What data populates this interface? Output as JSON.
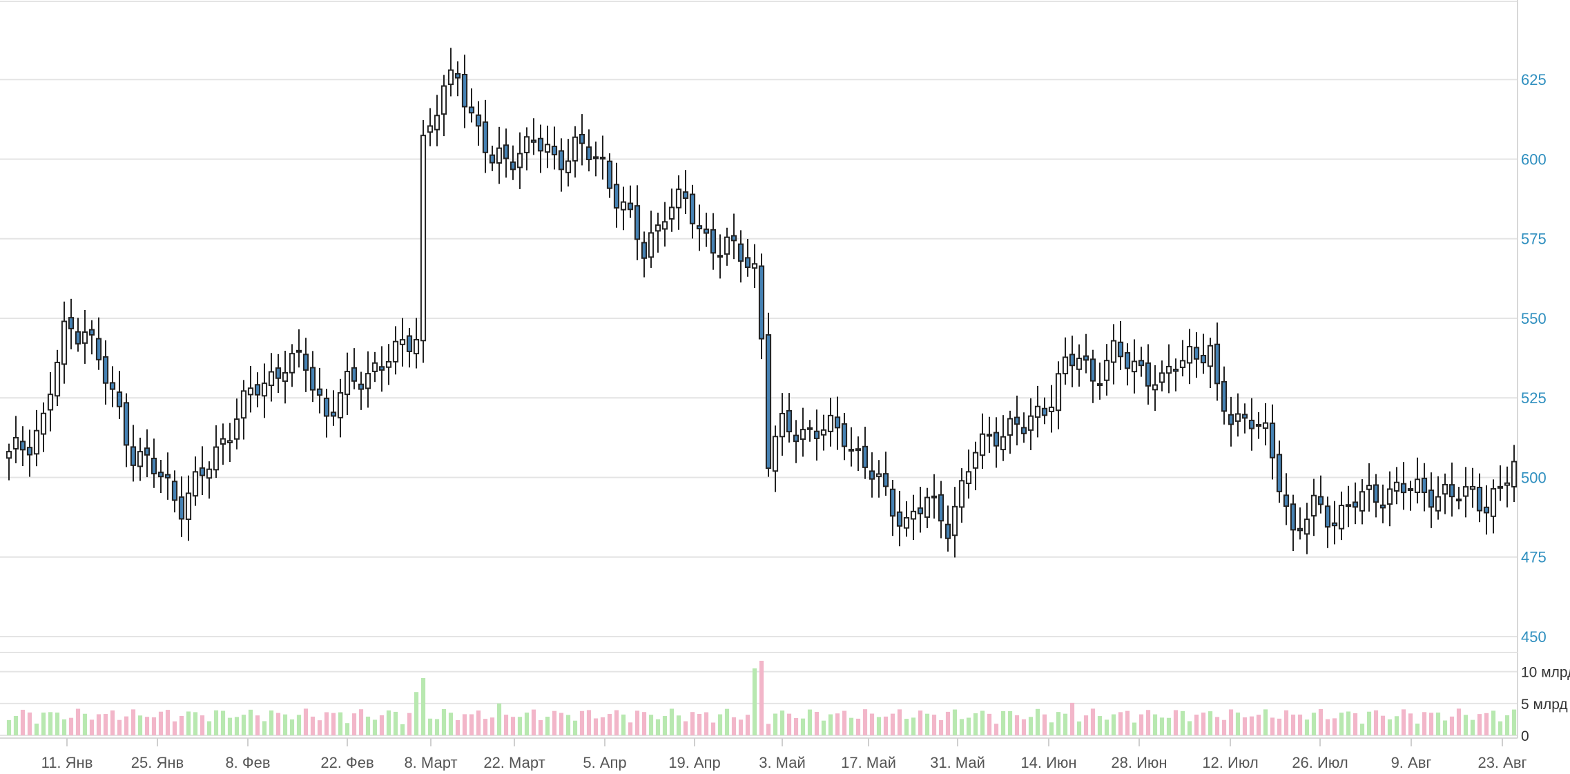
{
  "chart_data": [
    {
      "type": "candlestick",
      "title": "",
      "ylim": [
        445,
        650
      ],
      "y_ticks": [
        "450",
        "475",
        "500",
        "525",
        "550",
        "575",
        "600",
        "625"
      ],
      "x_ticks": [
        "11. Янв",
        "25. Янв",
        "8. Фев",
        "22. Фев",
        "8. Март",
        "22. Март",
        "5. Апр",
        "19. Апр",
        "3. Май",
        "17. Май",
        "31. Май",
        "14. Июн",
        "28. Июн",
        "12. Июл",
        "26. Июл",
        "9. Авг",
        "23. Авг"
      ],
      "colors": {
        "up_fill": "#ffffff",
        "down_fill": "#4682b4",
        "outline": "#222222",
        "tick_label": "#2f8fbf"
      },
      "legend": "none",
      "grid": true
    },
    {
      "type": "bar",
      "title": "",
      "unit": "млрд",
      "ylim": [
        0,
        13
      ],
      "y_ticks": [
        "0",
        "5 млрд",
        "10 млрд"
      ],
      "colors": {
        "up": "#b8e8b0",
        "down": "#f2b6c9"
      },
      "grid": true
    }
  ]
}
